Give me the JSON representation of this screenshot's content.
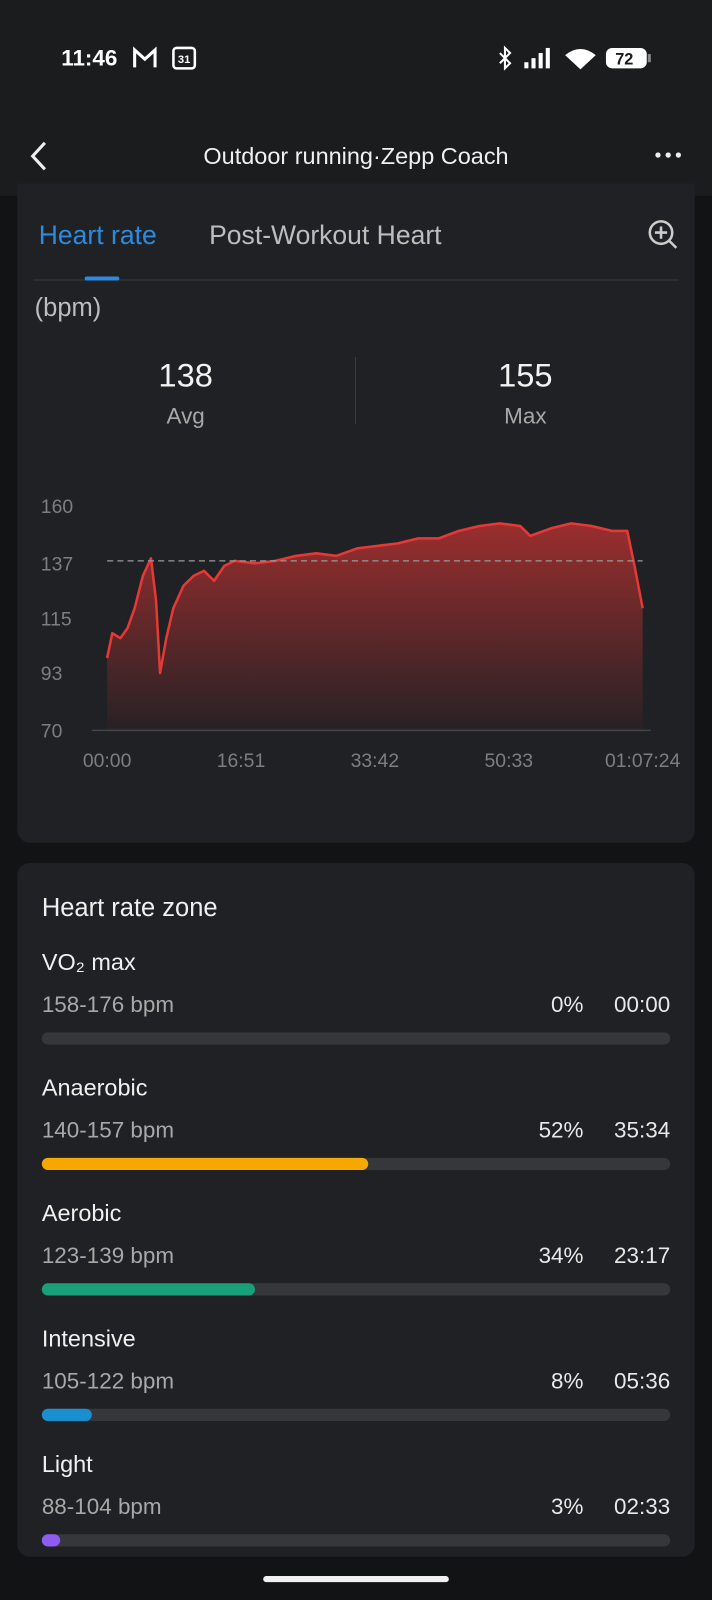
{
  "status_bar": {
    "time": "11:46",
    "calendar_icon": "31",
    "battery": "72"
  },
  "header": {
    "title": "Outdoor running·Zepp Coach"
  },
  "tabs": [
    "Heart rate",
    "Post-Workout Heart"
  ],
  "summary": {
    "unit": "(bpm)",
    "avg": 138,
    "avg_label": "Avg",
    "max": 155,
    "max_label": "Max"
  },
  "chart_data": {
    "type": "area",
    "x": [
      0,
      39,
      100,
      154,
      208,
      270,
      331,
      370,
      400,
      447,
      500,
      577,
      654,
      731,
      808,
      885,
      963,
      1117,
      1271,
      1425,
      1579,
      1733,
      1887,
      2041,
      2195,
      2349,
      2503,
      2657,
      2811,
      2965,
      3119,
      3196,
      3350,
      3504,
      3658,
      3812,
      3928,
      3982,
      4044
    ],
    "values": [
      99,
      109,
      107,
      111,
      119,
      132,
      139,
      122,
      93,
      107,
      119,
      128,
      132,
      134,
      130,
      136,
      138,
      137,
      138,
      140,
      141,
      140,
      143,
      144,
      145,
      147,
      147,
      150,
      152,
      153,
      152,
      148,
      151,
      153,
      152,
      150,
      150,
      136,
      119
    ],
    "color": "#e53935",
    "xlim": [
      0,
      4044
    ],
    "xticks": [
      {
        "value": 0,
        "label": "00:00"
      },
      {
        "value": 1011,
        "label": "16:51"
      },
      {
        "value": 2022,
        "label": "33:42"
      },
      {
        "value": 3033,
        "label": "50:33"
      },
      {
        "value": 4044,
        "label": "01:07:24"
      }
    ],
    "ylim": [
      70,
      160
    ],
    "yticks": [
      70,
      93,
      115,
      137,
      160
    ]
  },
  "zones": {
    "title": "Heart rate zone",
    "items": [
      {
        "name": "VO₂ max",
        "range": "158-176 bpm",
        "percent": 0,
        "percent_label": "0%",
        "time": "00:00",
        "color": "#5a5c60"
      },
      {
        "name": "Anaerobic",
        "range": "140-157 bpm",
        "percent": 52,
        "percent_label": "52%",
        "time": "35:34",
        "color": "#f5a800"
      },
      {
        "name": "Aerobic",
        "range": "123-139 bpm",
        "percent": 34,
        "percent_label": "34%",
        "time": "23:17",
        "color": "#17a07a"
      },
      {
        "name": "Intensive",
        "range": "105-122 bpm",
        "percent": 8,
        "percent_label": "8%",
        "time": "05:36",
        "color": "#1a8fd0"
      },
      {
        "name": "Light",
        "range": "88-104 bpm",
        "percent": 3,
        "percent_label": "3%",
        "time": "02:33",
        "color": "#8e5cf0"
      }
    ]
  }
}
